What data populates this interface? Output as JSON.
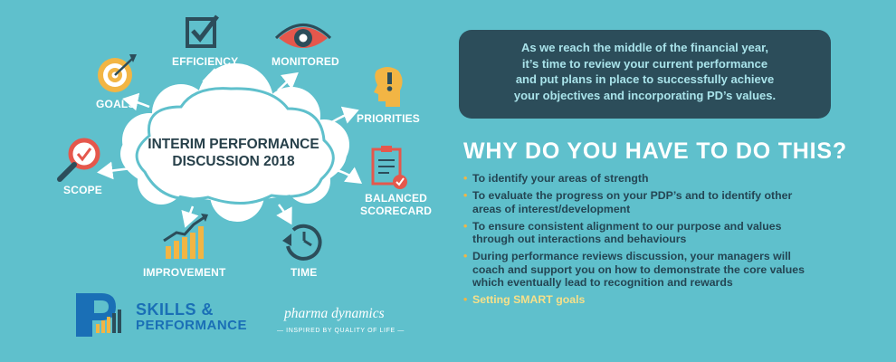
{
  "diagram": {
    "title_line1": "INTERIM PERFORMANCE",
    "title_line2": "DISCUSSION 2018",
    "labels": {
      "goals": "GOALS",
      "efficiency": "EFFICIENCY",
      "monitored": "MONITORED",
      "priorities": "PRIORITIES",
      "scope": "SCOPE",
      "balanced_line1": "BALANCED",
      "balanced_line2": "SCORECARD",
      "improvement": "IMPROVEMENT",
      "time": "TIME"
    }
  },
  "intro": {
    "line1": "As we reach the middle of the financial year,",
    "line2": "it’s time to review your current performance",
    "line3": "and put plans in place to successfully achieve",
    "line4": "your objectives and incorporating PD’s values."
  },
  "why": {
    "heading": "WHY DO YOU HAVE TO DO THIS?",
    "items": [
      "To identify your areas of strength",
      "To evaluate the progress on your PDP’s and to identify other areas of interest/development",
      "To ensure consistent alignment to our purpose and values through out interactions and behaviours",
      "During performance reviews discussion, your managers will coach and support you on how to demonstrate the core values which eventually lead to recognition and rewards",
      "Setting SMART goals"
    ]
  },
  "brand": {
    "logo_letter": "P",
    "skills_line1": "SKILLS &",
    "skills_line2": "PERFORMANCE",
    "pd_name": "pharma dynamics",
    "pd_tagline": "— INSPIRED BY QUALITY OF LIFE —"
  },
  "colors": {
    "background": "#5fc0cc",
    "box": "#2c4d5a",
    "box_text": "#a9e3ea",
    "list_text": "#244553",
    "bullet": "#f2b544",
    "icon_yellow": "#f2b544",
    "icon_red": "#e5574c",
    "icon_dark": "#2c4d5a"
  }
}
